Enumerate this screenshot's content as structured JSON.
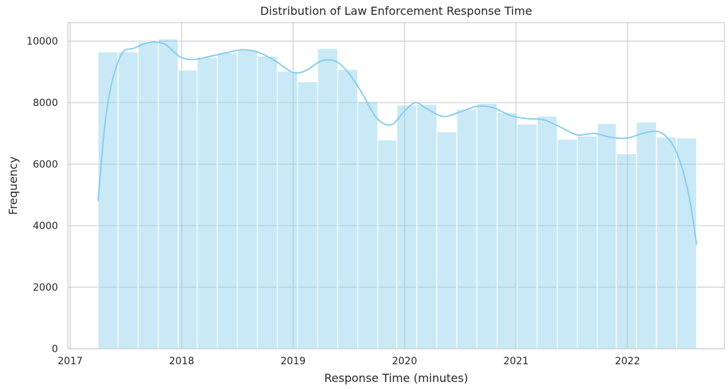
{
  "chart_data": {
    "type": "histogram",
    "title": "Distribution of Law Enforcement Response Time",
    "xlabel": "Response Time (minutes)",
    "ylabel": "Frequency",
    "x_ticks": [
      "2017",
      "2018",
      "2019",
      "2020",
      "2021",
      "2022"
    ],
    "y_ticks": [
      "0",
      "2000",
      "4000",
      "6000",
      "8000",
      "10000"
    ],
    "xlim": [
      2016.98,
      2022.87
    ],
    "ylim": [
      0,
      10600
    ],
    "grid": true,
    "bar_color": "#87ceeb",
    "kde_color": "#87ceeb",
    "bins": [
      {
        "start": 2017.25,
        "end": 2017.43,
        "count": 9650
      },
      {
        "start": 2017.43,
        "end": 2017.61,
        "count": 9650
      },
      {
        "start": 2017.61,
        "end": 2017.79,
        "count": 9980
      },
      {
        "start": 2017.79,
        "end": 2017.97,
        "count": 10070
      },
      {
        "start": 2017.97,
        "end": 2018.14,
        "count": 9060
      },
      {
        "start": 2018.14,
        "end": 2018.32,
        "count": 9480
      },
      {
        "start": 2018.32,
        "end": 2018.5,
        "count": 9620
      },
      {
        "start": 2018.5,
        "end": 2018.68,
        "count": 9720
      },
      {
        "start": 2018.68,
        "end": 2018.86,
        "count": 9510
      },
      {
        "start": 2018.86,
        "end": 2019.04,
        "count": 9020
      },
      {
        "start": 2019.04,
        "end": 2019.22,
        "count": 8680
      },
      {
        "start": 2019.22,
        "end": 2019.4,
        "count": 9760
      },
      {
        "start": 2019.4,
        "end": 2019.58,
        "count": 9080
      },
      {
        "start": 2019.58,
        "end": 2019.76,
        "count": 8040
      },
      {
        "start": 2019.76,
        "end": 2019.93,
        "count": 6790
      },
      {
        "start": 2019.93,
        "end": 2020.11,
        "count": 7920
      },
      {
        "start": 2020.11,
        "end": 2020.29,
        "count": 7940
      },
      {
        "start": 2020.29,
        "end": 2020.47,
        "count": 7050
      },
      {
        "start": 2020.47,
        "end": 2020.65,
        "count": 7790
      },
      {
        "start": 2020.65,
        "end": 2020.83,
        "count": 7980
      },
      {
        "start": 2020.83,
        "end": 2021.01,
        "count": 7680
      },
      {
        "start": 2021.01,
        "end": 2021.19,
        "count": 7300
      },
      {
        "start": 2021.19,
        "end": 2021.37,
        "count": 7560
      },
      {
        "start": 2021.37,
        "end": 2021.55,
        "count": 6810
      },
      {
        "start": 2021.55,
        "end": 2021.73,
        "count": 6910
      },
      {
        "start": 2021.73,
        "end": 2021.9,
        "count": 7320
      },
      {
        "start": 2021.9,
        "end": 2022.08,
        "count": 6340
      },
      {
        "start": 2022.08,
        "end": 2022.26,
        "count": 7370
      },
      {
        "start": 2022.26,
        "end": 2022.44,
        "count": 6880
      },
      {
        "start": 2022.44,
        "end": 2022.62,
        "count": 6850
      }
    ],
    "kde": {
      "x": [
        2017.25,
        2017.33,
        2017.45,
        2017.58,
        2017.72,
        2017.85,
        2017.98,
        2018.1,
        2018.25,
        2018.4,
        2018.55,
        2018.7,
        2018.85,
        2019.0,
        2019.12,
        2019.25,
        2019.38,
        2019.5,
        2019.62,
        2019.75,
        2019.88,
        2020.0,
        2020.1,
        2020.2,
        2020.35,
        2020.5,
        2020.65,
        2020.8,
        2020.95,
        2021.1,
        2021.25,
        2021.4,
        2021.55,
        2021.7,
        2021.85,
        2022.0,
        2022.12,
        2022.25,
        2022.35,
        2022.45,
        2022.55,
        2022.62
      ],
      "y": [
        4800,
        7800,
        9500,
        9780,
        9960,
        9900,
        9500,
        9400,
        9500,
        9620,
        9720,
        9620,
        9330,
        8980,
        9050,
        9350,
        9350,
        8950,
        8300,
        7500,
        7280,
        7730,
        8000,
        7800,
        7550,
        7700,
        7880,
        7830,
        7580,
        7480,
        7440,
        7200,
        6950,
        7000,
        6870,
        6850,
        6980,
        7070,
        6890,
        6300,
        5000,
        3380
      ]
    }
  }
}
